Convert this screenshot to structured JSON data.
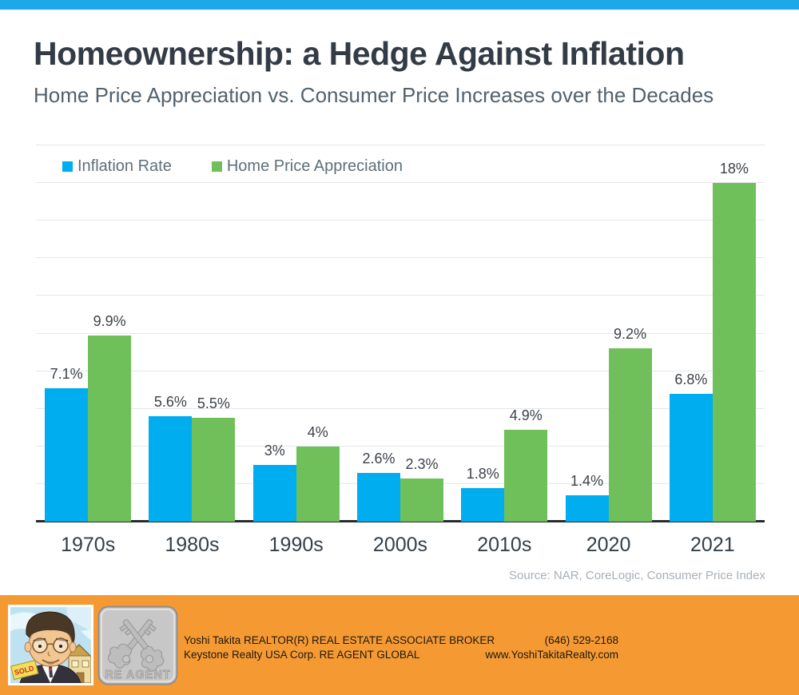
{
  "header": {
    "title": "Homeownership: a Hedge Against Inflation",
    "subtitle": "Home Price Appreciation vs. Consumer Price Increases over the Decades"
  },
  "colors": {
    "accent_bar": "#1CA9E8",
    "inflation_blue": "#00AEEF",
    "appreciation_green": "#6FC05A",
    "footer_orange": "#F59A33"
  },
  "chart_data": {
    "type": "bar",
    "categories": [
      "1970s",
      "1980s",
      "1990s",
      "2000s",
      "2010s",
      "2020",
      "2021"
    ],
    "series": [
      {
        "name": "Inflation Rate",
        "color": "#00AEEF",
        "values": [
          7.1,
          5.6,
          3,
          2.6,
          1.8,
          1.4,
          6.8
        ],
        "labels": [
          "7.1%",
          "5.6%",
          "3%",
          "2.6%",
          "1.8%",
          "1.4%",
          "6.8%"
        ]
      },
      {
        "name": "Home Price Appreciation",
        "color": "#6FC05A",
        "values": [
          9.9,
          5.5,
          4,
          2.3,
          4.9,
          9.2,
          18
        ],
        "labels": [
          "9.9%",
          "5.5%",
          "4%",
          "2.3%",
          "4.9%",
          "9.2%",
          "18%"
        ]
      }
    ],
    "title": "Homeownership: a Hedge Against Inflation",
    "xlabel": "",
    "ylabel": "",
    "ylim": [
      0,
      20
    ],
    "gridline_step": 2,
    "grid": true,
    "legend_position": "top-left"
  },
  "source": "Source: NAR, CoreLogic, Consumer Price Index",
  "footer": {
    "line1_left": "Yoshi Takita REALTOR(R) REAL ESTATE ASSOCIATE BROKER",
    "line1_right": "(646) 529-2168",
    "line2_left": "Keystone Realty USA Corp.  RE AGENT GLOBAL",
    "line2_right": "www.YoshiTakitaRealty.com",
    "logo_text": "RE AGENT",
    "avatar_sold_text": "SOLD"
  }
}
